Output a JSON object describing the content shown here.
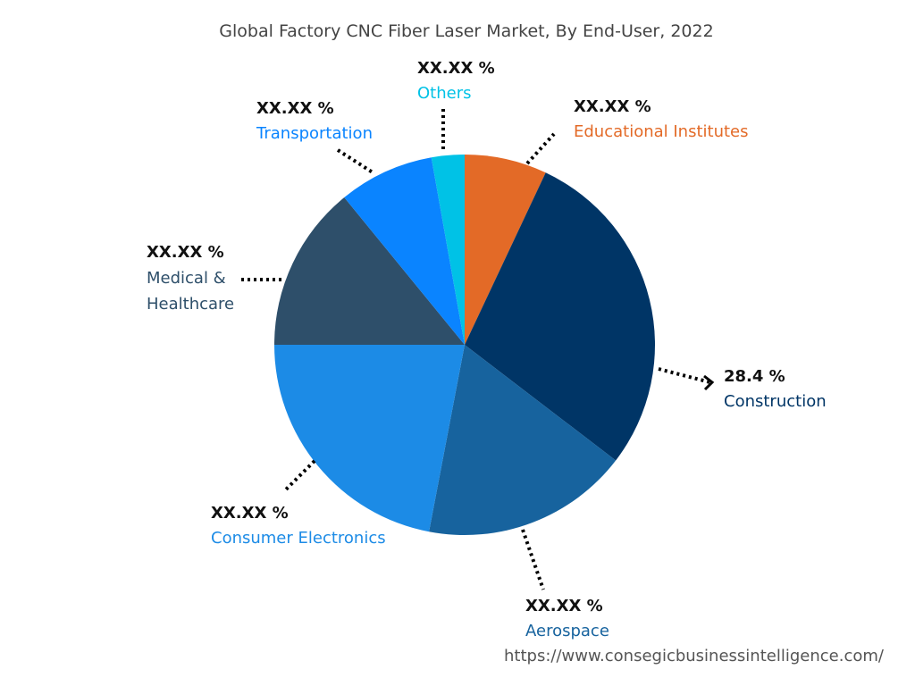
{
  "chart_data": {
    "type": "pie",
    "title": "Global Factory CNC Fiber Laser Market, By End-User, 2022",
    "start_angle_deg": 0,
    "direction": "clockwise",
    "slices": [
      {
        "name": "Educational Institutes",
        "label": "XX.XX %",
        "value": 7.0,
        "color": "#E36A27"
      },
      {
        "name": "Construction",
        "label": "28.4 %",
        "value": 28.4,
        "color": "#003566"
      },
      {
        "name": "Aerospace",
        "label": "XX.XX %",
        "value": 17.6,
        "color": "#17639E"
      },
      {
        "name": "Consumer Electronics",
        "label": "XX.XX %",
        "value": 22.0,
        "color": "#1C8BE6"
      },
      {
        "name": "Medical & Healthcare",
        "label": "XX.XX %",
        "value": 14.1,
        "color": "#2E4F6A"
      },
      {
        "name": "Transportation",
        "label": "XX.XX %",
        "value": 8.1,
        "color": "#0A84FF"
      },
      {
        "name": "Others",
        "label": "XX.XX %",
        "value": 2.8,
        "color": "#00C2E6"
      }
    ]
  },
  "footer": {
    "url": "https://www.consegicbusinessintelligence.com/"
  }
}
